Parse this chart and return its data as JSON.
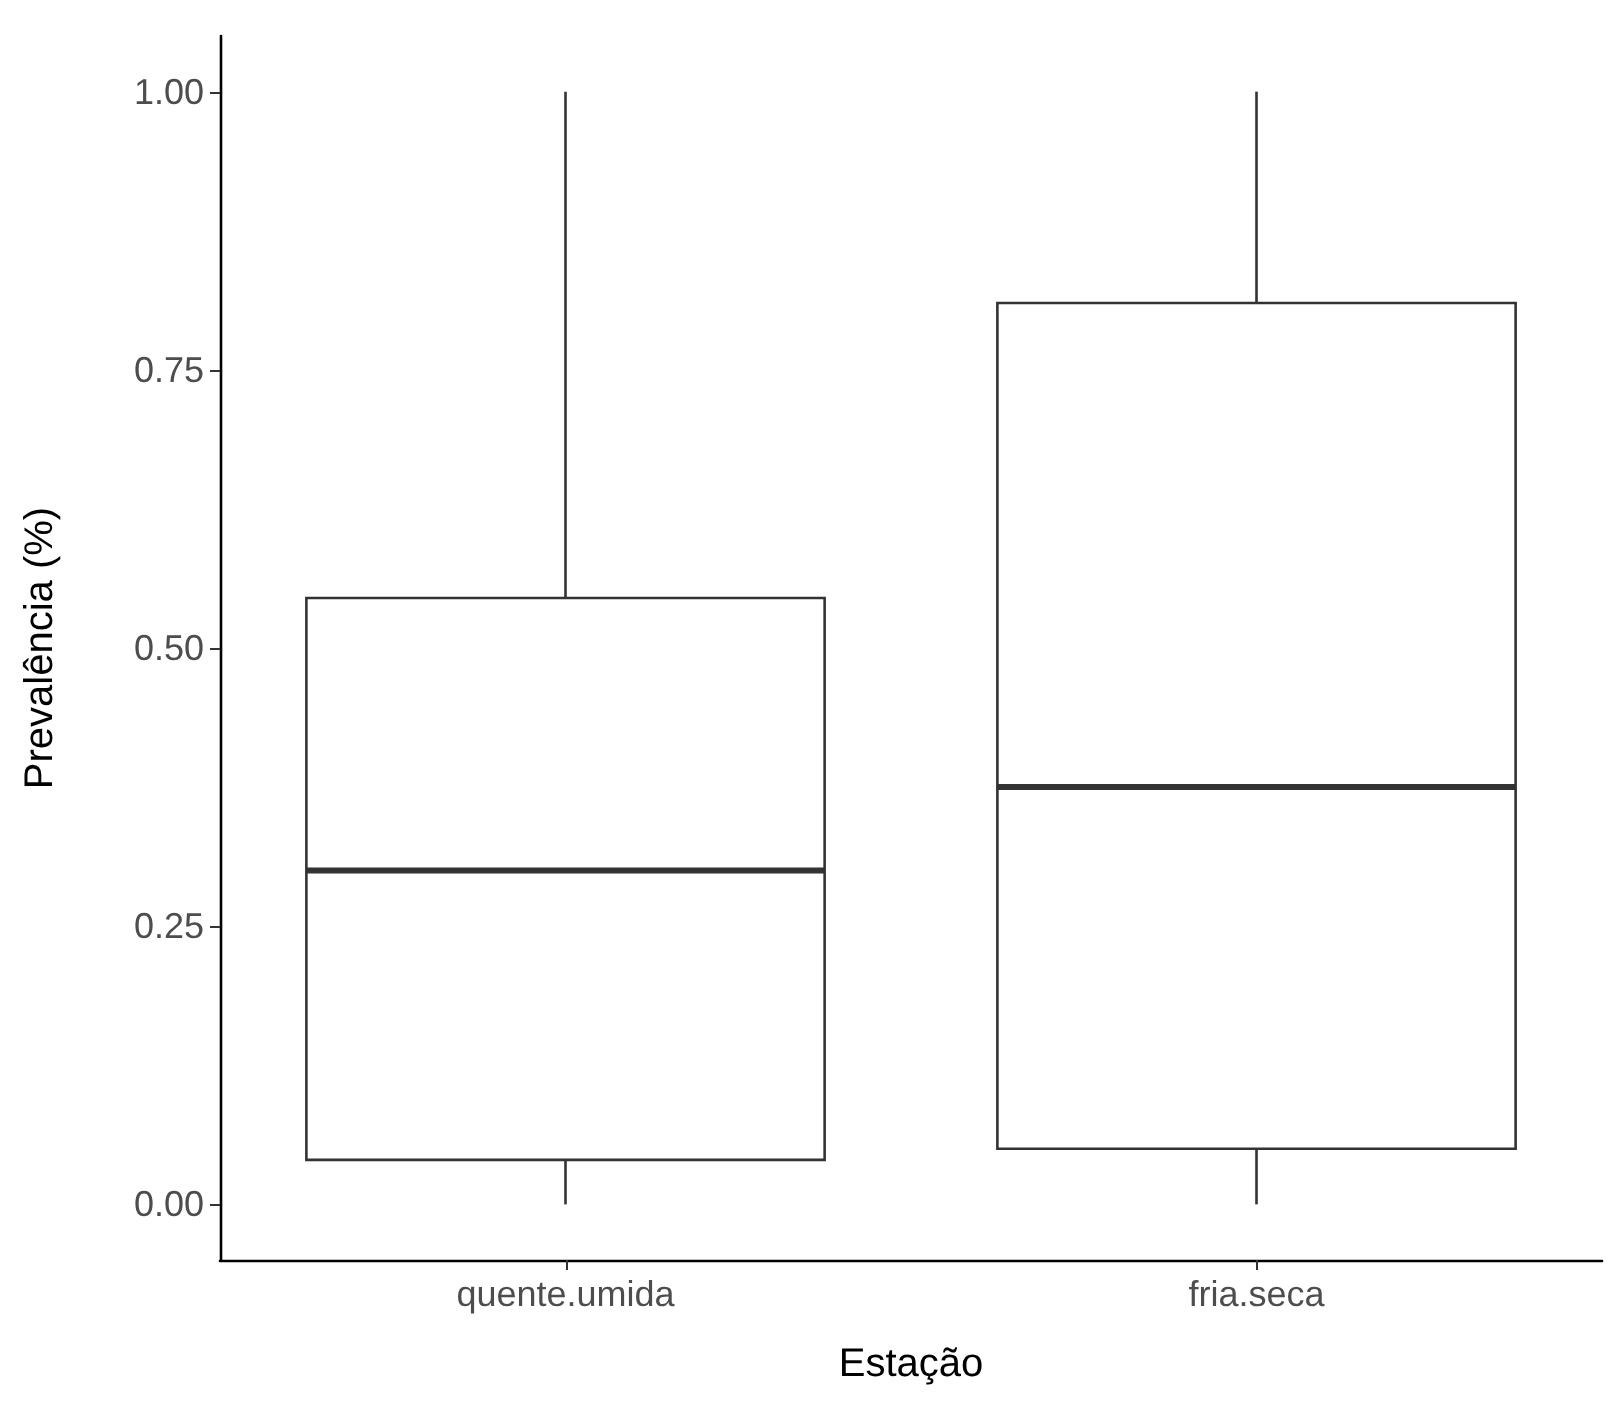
{
  "chart_data": {
    "type": "box",
    "xlabel": "Estação",
    "ylabel": "Prevalência (%)",
    "categories": [
      "quente.umida",
      "fria.seca"
    ],
    "boxes": [
      {
        "low": 0,
        "q1": 0.04,
        "median": 0.3,
        "q3": 0.545,
        "high": 1
      },
      {
        "low": 0,
        "q1": 0.05,
        "median": 0.375,
        "q3": 0.81,
        "high": 1
      }
    ],
    "color": "#333333",
    "ylim": [
      -0.05,
      1.05
    ],
    "yticks": [
      {
        "value": 0,
        "label": "0.00"
      },
      {
        "value": 0.25,
        "label": "0.25"
      },
      {
        "value": 0.5,
        "label": "0.50"
      },
      {
        "value": 0.75,
        "label": "0.75"
      },
      {
        "value": 1,
        "label": "1.00"
      }
    ],
    "grid": false
  }
}
